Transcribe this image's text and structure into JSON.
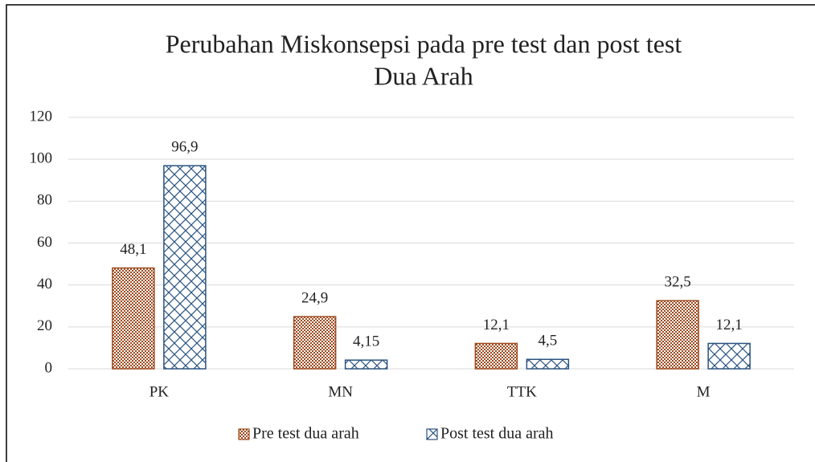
{
  "chart_data": {
    "type": "bar",
    "title": [
      "Perubahan Miskonsepsi pada pre test dan post test",
      "Dua Arah"
    ],
    "categories": [
      "PK",
      "MN",
      "TTK",
      "M"
    ],
    "series": [
      {
        "name": "Pre test dua arah",
        "color": "#9e4a1f",
        "values": [
          48.1,
          24.9,
          12.1,
          32.5
        ],
        "value_labels": [
          "48,1",
          "24,9",
          "12,1",
          "32,5"
        ]
      },
      {
        "name": "Post test dua arah",
        "color": "#2a5380",
        "values": [
          96.9,
          4.15,
          4.5,
          12.1
        ],
        "value_labels": [
          "96,9",
          "4,15",
          "4,5",
          "12,1"
        ]
      }
    ],
    "ylim": [
      0,
      120
    ],
    "yticks": [
      0,
      20,
      40,
      60,
      80,
      100,
      120
    ],
    "grid": true,
    "legend": "bottom"
  }
}
